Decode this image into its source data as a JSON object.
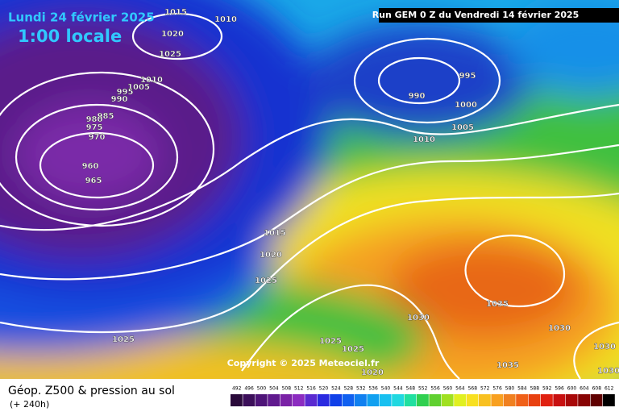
{
  "header": {
    "date": "Lundi 24 février 2025",
    "time": "1:00 locale",
    "run": "Run GEM 0 Z du Vendredi 14 février 2025"
  },
  "copyright": "Copyright © 2025 Meteociel.fr",
  "footer": {
    "title": "Géop. Z500 & pression au sol",
    "subtitle": "(+ 240h)"
  },
  "isobar_labels": [
    1015,
    1020,
    1010,
    1025,
    1010,
    1005,
    995,
    990,
    985,
    980,
    975,
    970,
    960,
    965,
    995,
    990,
    1000,
    1005,
    1010,
    1015,
    1020,
    1025,
    1025,
    1030,
    1035,
    1030,
    1025,
    1025,
    1020,
    1035,
    1030,
    1030
  ],
  "scale": {
    "labels": [
      492,
      496,
      500,
      504,
      508,
      512,
      516,
      520,
      524,
      528,
      532,
      536,
      540,
      544,
      548,
      552,
      556,
      560,
      564,
      568,
      572,
      576,
      580,
      584,
      588,
      592,
      596,
      600,
      604,
      608,
      612
    ],
    "colors": [
      "#2a0a3a",
      "#3c0f5a",
      "#4e1478",
      "#601a8e",
      "#7a22a6",
      "#8c2cc0",
      "#5a2ad0",
      "#2a2ae0",
      "#1040e8",
      "#1060f0",
      "#1080f0",
      "#10a0f0",
      "#18c0f0",
      "#20d8e0",
      "#20e0a0",
      "#30d050",
      "#60d030",
      "#a0e020",
      "#e0f020",
      "#f8e020",
      "#f8c020",
      "#f8a020",
      "#f08020",
      "#f06018",
      "#e84010",
      "#e02010",
      "#c81010",
      "#a80808",
      "#880404",
      "#600000",
      "#000000"
    ]
  }
}
